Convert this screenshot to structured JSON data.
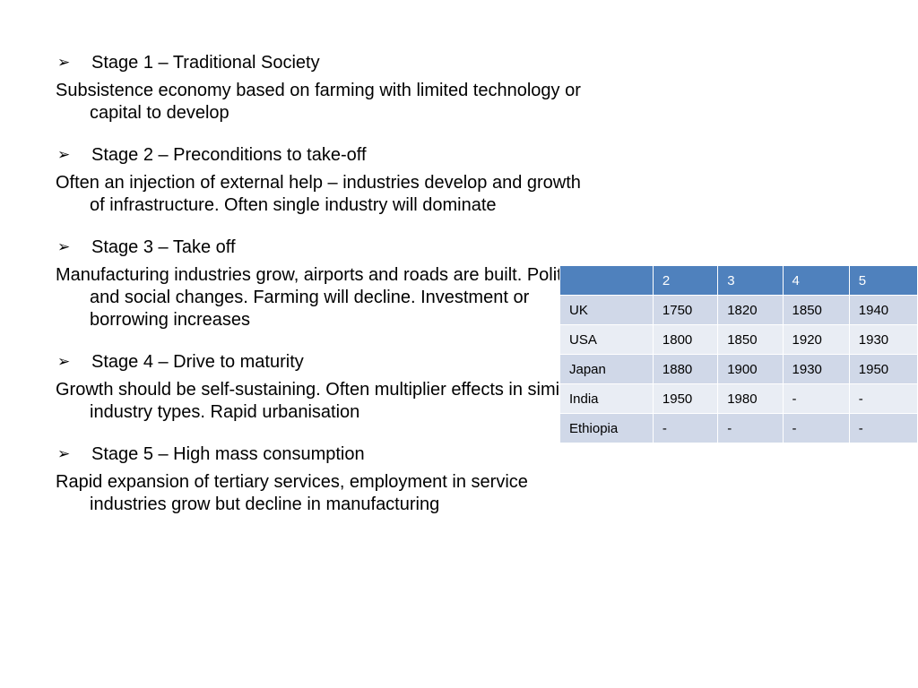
{
  "stages": [
    {
      "title": "Stage 1 – Traditional Society",
      "body": "Subsistence economy based on farming with limited technology or capital to develop"
    },
    {
      "title": "Stage 2 – Preconditions to take-off",
      "body": "Often an injection of external help – industries develop and growth of infrastructure.  Often single industry will dominate"
    },
    {
      "title": "Stage 3 – Take off",
      "body": "Manufacturing industries grow, airports and roads are built.  Political and social changes.  Farming will decline. Investment or borrowing increases"
    },
    {
      "title": "Stage 4 – Drive to maturity",
      "body": "Growth should be self-sustaining.  Often multiplier effects in similar industry types.  Rapid urbanisation"
    },
    {
      "title": "Stage 5 – High mass consumption",
      "body": "Rapid expansion of tertiary services, employment in service industries grow but decline in manufacturing"
    }
  ],
  "bullet_icon": "arrow-bullet-icon",
  "table": {
    "headers": [
      "",
      "2",
      "3",
      "4",
      "5"
    ],
    "rows": [
      [
        "UK",
        "1750",
        "1820",
        "1850",
        "1940"
      ],
      [
        "USA",
        "1800",
        "1850",
        "1920",
        "1930"
      ],
      [
        "Japan",
        "1880",
        "1900",
        "1930",
        "1950"
      ],
      [
        "India",
        "1950",
        "1980",
        "-",
        "-"
      ],
      [
        "Ethiopia",
        "-",
        "-",
        "-",
        "-"
      ]
    ],
    "colors": {
      "header": "#4f81bd",
      "row_odd": "#d0d8e8",
      "row_even": "#e9edf4"
    }
  }
}
